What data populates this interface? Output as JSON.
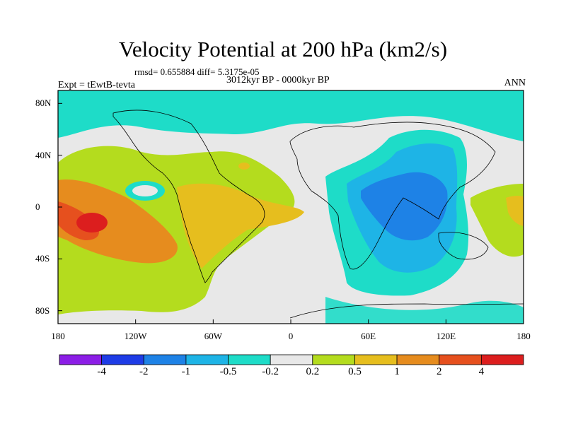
{
  "chart_data": {
    "type": "heatmap",
    "title": "Velocity Potential at 200 hPa (km2/s)",
    "stats_line": "rmsd= 0.655884 diff= 5.3175e-05",
    "subtitle": "3012kyr BP - 0000kyr BP",
    "left_label": "Expt = tEwtB-tevta",
    "right_label": "ANN",
    "x_ticks": [
      "180",
      "120W",
      "60W",
      "0",
      "60E",
      "120E",
      "180"
    ],
    "x_tick_values": [
      -180,
      -120,
      -60,
      0,
      60,
      120,
      180
    ],
    "y_ticks": [
      "80N",
      "40N",
      "0",
      "40S",
      "80S"
    ],
    "y_tick_values": [
      80,
      40,
      0,
      -40,
      -80
    ],
    "xlim": [
      -180,
      180
    ],
    "ylim": [
      -90,
      90
    ],
    "colorbar": {
      "levels": [
        -4,
        -2,
        -1,
        -0.5,
        -0.2,
        0.2,
        0.5,
        1,
        2,
        4
      ],
      "labels": [
        "-4",
        "-2",
        "-1",
        "-0.5",
        "-0.2",
        "0.2",
        "0.5",
        "1",
        "2",
        "4"
      ],
      "colors": [
        "#8c1ee6",
        "#1e3ce6",
        "#1e82e6",
        "#1eb4e6",
        "#1edcc8",
        "#e8e8e8",
        "#b4dc1e",
        "#e6be1e",
        "#e68c1e",
        "#e6501e",
        "#dc1e1e"
      ]
    },
    "features": [
      {
        "name": "Central Pacific positive center",
        "lon": -155,
        "lat": -12,
        "value": 4
      },
      {
        "name": "South American positive anomaly",
        "lon": -55,
        "lat": -5,
        "value": 1
      },
      {
        "name": "Indo-Pacific negative center",
        "lon": 80,
        "lat": 5,
        "value": -1
      },
      {
        "name": "Eastern Hemisphere negative anomaly",
        "lon": 70,
        "lat": 10,
        "value": -0.5
      },
      {
        "name": "Western Pacific positive",
        "lon": 175,
        "lat": -2,
        "value": 1
      }
    ]
  }
}
